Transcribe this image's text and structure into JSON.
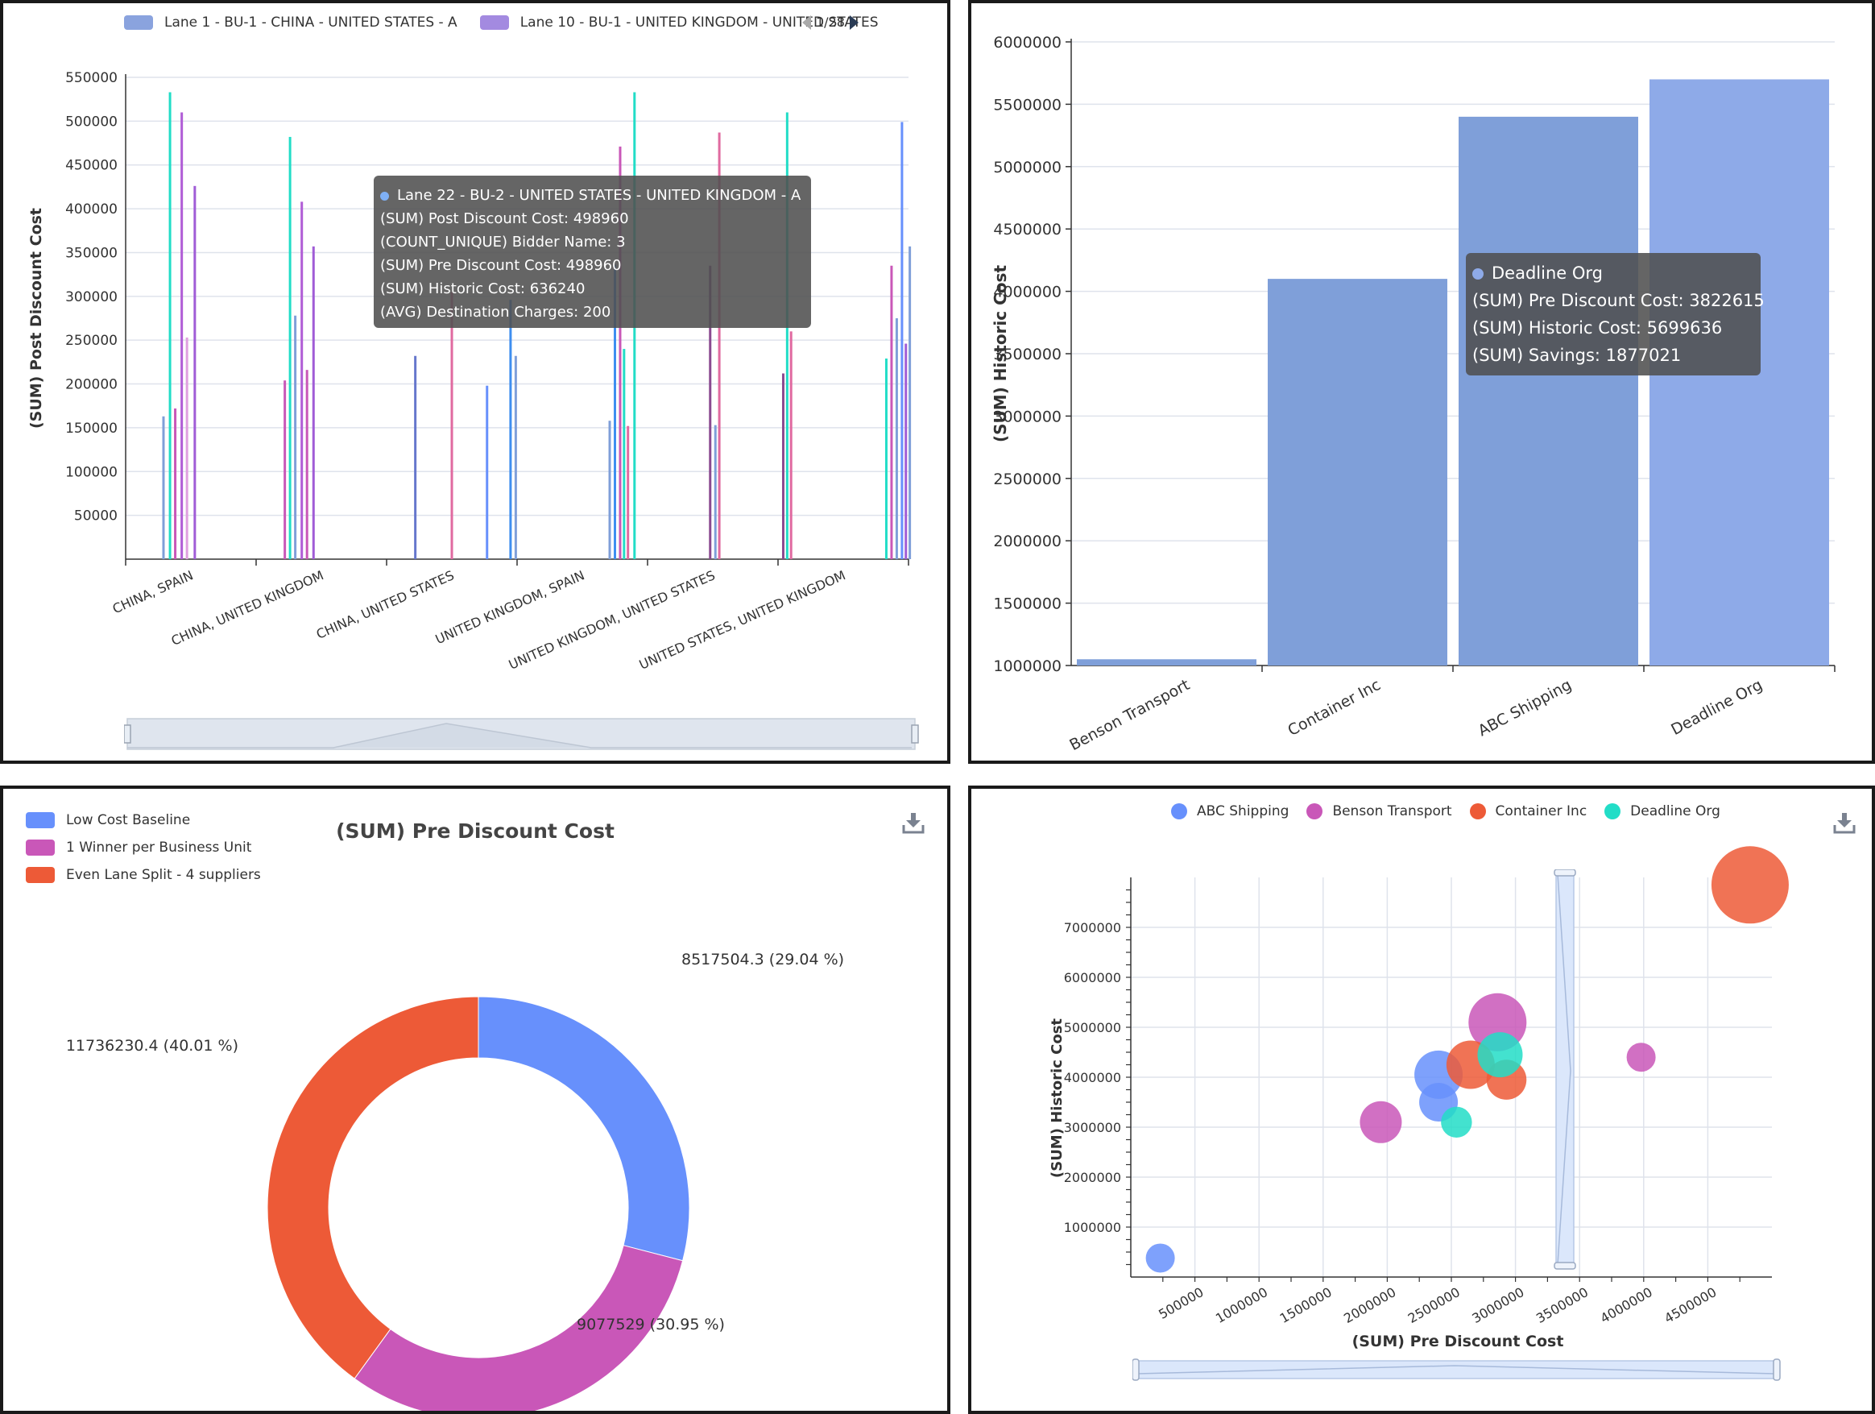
{
  "colors": {
    "grid": "#dfe3ec",
    "axis": "#333333",
    "blue": "#7f9fd9",
    "blue_light": "#8eaae8",
    "pie_blue": "#6790fc",
    "pie_purple": "#c957b8",
    "pie_orange": "#ed5a37",
    "scatter_blue": "#6790fc",
    "scatter_purple": "#c957b8",
    "scatter_orange": "#ed5a37",
    "scatter_teal": "#22ddc7",
    "legend_blue": "#8aa3de",
    "legend_purple": "#a38ae0"
  },
  "panel1": {
    "legend": {
      "items": [
        "Lane 1 - BU-1 - CHINA - UNITED STATES - A",
        "Lane 10 - BU-1 - UNITED KINGDOM - UNITED STATES"
      ],
      "pager": "1/28"
    },
    "tooltip": {
      "header": "Lane 22 - BU-2 - UNITED STATES - UNITED KINGDOM - A",
      "rows": [
        "(SUM) Post Discount Cost: 498960",
        "(COUNT_UNIQUE) Bidder Name: 3",
        "(SUM) Pre Discount Cost: 498960",
        "(SUM) Historic Cost: 636240",
        "(AVG) Destination Charges: 200"
      ]
    }
  },
  "panel2": {
    "tooltip": {
      "header": "Deadline Org",
      "rows": [
        "(SUM) Pre Discount Cost: 3822615",
        "(SUM) Historic Cost: 5699636",
        "(SUM) Savings: 1877021"
      ]
    }
  },
  "panel3": {
    "title": "(SUM) Pre Discount Cost",
    "legend": [
      "Low Cost Baseline",
      "1 Winner per Business Unit",
      "Even Lane Split - 4 suppliers"
    ]
  },
  "panel4": {
    "legend": [
      "ABC Shipping",
      "Benson Transport",
      "Container Inc",
      "Deadline Org"
    ]
  },
  "chart_data": [
    {
      "type": "bar",
      "ylabel": "(SUM) Post Discount Cost",
      "ylim": [
        0,
        550000
      ],
      "yticks": [
        50000,
        100000,
        150000,
        200000,
        250000,
        300000,
        350000,
        400000,
        450000,
        500000,
        550000
      ],
      "categories": [
        "CHINA, SPAIN",
        "CHINA, UNITED KINGDOM",
        "CHINA, UNITED STATES",
        "UNITED KINGDOM, SPAIN",
        "UNITED KINGDOM, UNITED STATES",
        "UNITED STATES, UNITED KINGDOM"
      ],
      "bars": [
        {
          "category": 0,
          "offset": -0.21,
          "value": 163000,
          "color": "#7f9fd9"
        },
        {
          "category": 0,
          "offset": -0.16,
          "value": 533000,
          "color": "#22ddc7"
        },
        {
          "category": 0,
          "offset": -0.12,
          "value": 172000,
          "color": "#c957b8"
        },
        {
          "category": 0,
          "offset": -0.07,
          "value": 510000,
          "color": "#b05dd6"
        },
        {
          "category": 0,
          "offset": -0.03,
          "value": 253000,
          "color": "#e0a0e0"
        },
        {
          "category": 0,
          "offset": 0.03,
          "value": 426000,
          "color": "#a05cd6"
        },
        {
          "category": 1,
          "offset": -0.28,
          "value": 204000,
          "color": "#c957b8"
        },
        {
          "category": 1,
          "offset": -0.24,
          "value": 482000,
          "color": "#22ddc7"
        },
        {
          "category": 1,
          "offset": -0.2,
          "value": 278000,
          "color": "#7f9fd9"
        },
        {
          "category": 1,
          "offset": -0.15,
          "value": 408000,
          "color": "#b05dd6"
        },
        {
          "category": 1,
          "offset": -0.11,
          "value": 216000,
          "color": "#c957b8"
        },
        {
          "category": 1,
          "offset": -0.06,
          "value": 357000,
          "color": "#a05cd6"
        },
        {
          "category": 2,
          "offset": -0.28,
          "value": 232000,
          "color": "#6677cc"
        },
        {
          "category": 2,
          "offset": 0.0,
          "value": 305000,
          "color": "#e06aa0"
        },
        {
          "category": 2,
          "offset": 0.27,
          "value": 198000,
          "color": "#6790fc"
        },
        {
          "category": 2,
          "offset": 0.45,
          "value": 296000,
          "color": "#3e8ef0"
        },
        {
          "category": 2,
          "offset": 0.49,
          "value": 232000,
          "color": "#7f9fd9"
        },
        {
          "category": 3,
          "offset": 0.21,
          "value": 158000,
          "color": "#7f9fd9"
        },
        {
          "category": 3,
          "offset": 0.25,
          "value": 336000,
          "color": "#3e8ef0"
        },
        {
          "category": 3,
          "offset": 0.29,
          "value": 471000,
          "color": "#c957b8"
        },
        {
          "category": 3,
          "offset": 0.32,
          "value": 240000,
          "color": "#22ddc7"
        },
        {
          "category": 3,
          "offset": 0.35,
          "value": 152000,
          "color": "#e06aa0"
        },
        {
          "category": 3,
          "offset": 0.4,
          "value": 533000,
          "color": "#22ddc7"
        },
        {
          "category": 4,
          "offset": -0.02,
          "value": 335000,
          "color": "#8a4a90"
        },
        {
          "category": 4,
          "offset": 0.02,
          "value": 153000,
          "color": "#7f9fd9"
        },
        {
          "category": 4,
          "offset": 0.05,
          "value": 487000,
          "color": "#e06aa0"
        },
        {
          "category": 5,
          "offset": -0.46,
          "value": 212000,
          "color": "#8a4a90"
        },
        {
          "category": 5,
          "offset": -0.43,
          "value": 510000,
          "color": "#22ddc7"
        },
        {
          "category": 5,
          "offset": -0.4,
          "value": 260000,
          "color": "#e06aa0"
        },
        {
          "category": 5,
          "offset": 0.33,
          "value": 229000,
          "color": "#22ddc7"
        },
        {
          "category": 5,
          "offset": 0.37,
          "value": 335000,
          "color": "#c957b8"
        },
        {
          "category": 5,
          "offset": 0.41,
          "value": 275000,
          "color": "#7f9fd9"
        },
        {
          "category": 5,
          "offset": 0.45,
          "value": 499000,
          "color": "#6790fc"
        },
        {
          "category": 5,
          "offset": 0.48,
          "value": 246000,
          "color": "#a05cd6"
        },
        {
          "category": 5,
          "offset": 0.51,
          "value": 357000,
          "color": "#7f9fd9"
        }
      ]
    },
    {
      "type": "bar",
      "ylabel": "(SUM) Historic Cost",
      "ylim": [
        1000000,
        6000000
      ],
      "yticks": [
        1000000,
        1500000,
        2000000,
        2500000,
        3000000,
        3500000,
        4000000,
        4500000,
        5000000,
        5500000,
        6000000
      ],
      "categories": [
        "Benson Transport",
        "Container Inc",
        "ABC Shipping",
        "Deadline Org"
      ],
      "values": [
        1050000,
        4100000,
        5400000,
        5699636
      ]
    },
    {
      "type": "pie",
      "title": "(SUM) Pre Discount Cost",
      "slices": [
        {
          "name": "Low Cost Baseline",
          "value": 8517504.3,
          "label": "8517504.3 (29.04 %)"
        },
        {
          "name": "1 Winner per Business Unit",
          "value": 9077529,
          "label": "9077529 (30.95 %)"
        },
        {
          "name": "Even Lane Split - 4 suppliers",
          "value": 11736230.4,
          "label": "11736230.4 (40.01 %)"
        }
      ]
    },
    {
      "type": "scatter",
      "xlabel": "(SUM) Pre Discount Cost",
      "ylabel": "(SUM) Historic Cost",
      "xlim": [
        0,
        5000000
      ],
      "ylim": [
        0,
        8000000
      ],
      "xticks": [
        500000,
        1000000,
        1500000,
        2000000,
        2500000,
        3000000,
        3500000,
        4000000,
        4500000
      ],
      "yticks": [
        1000000,
        2000000,
        3000000,
        4000000,
        5000000,
        6000000,
        7000000
      ],
      "series": [
        {
          "name": "ABC Shipping",
          "points": [
            [
              230000,
              380000,
              0.25
            ],
            [
              2400000,
              4050000,
              0.55
            ],
            [
              2400000,
              3500000,
              0.4
            ]
          ]
        },
        {
          "name": "Benson Transport",
          "points": [
            [
              1950000,
              3100000,
              0.45
            ],
            [
              2860000,
              5100000,
              0.7
            ],
            [
              3980000,
              4400000,
              0.25
            ]
          ]
        },
        {
          "name": "Container Inc",
          "points": [
            [
              2650000,
              4250000,
              0.55
            ],
            [
              2930000,
              3950000,
              0.42
            ],
            [
              4830000,
              7850000,
              1.0
            ]
          ]
        },
        {
          "name": "Deadline Org",
          "points": [
            [
              2540000,
              3100000,
              0.28
            ],
            [
              2880000,
              4450000,
              0.5
            ]
          ]
        }
      ]
    }
  ]
}
